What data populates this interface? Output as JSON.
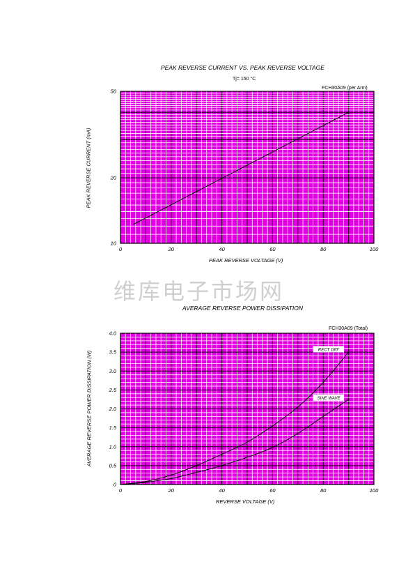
{
  "watermark": "维库电子市场网",
  "chart_data": [
    {
      "type": "line",
      "title": "PEAK REVERSE CURRENT VS. PEAK REVERSE VOLTAGE",
      "subtitle": "Tj= 150 °C",
      "note": "FCH30A09 (per Arm)",
      "xlabel": "PEAK REVERSE VOLTAGE (V)",
      "ylabel": "PEAK REVERSE CURRENT (mA)",
      "xlim": [
        0,
        100
      ],
      "ylim": [
        10,
        50
      ],
      "yscale": "log",
      "grid": true,
      "x_ticks": [
        "0",
        "20",
        "40",
        "60",
        "80",
        "100"
      ],
      "y_ticks": [
        "10",
        "20",
        "50"
      ],
      "series": [
        {
          "x": [
            5,
            90
          ],
          "y": [
            12.2,
            40
          ]
        }
      ]
    },
    {
      "type": "line",
      "title": "AVERAGE REVERSE POWER DISSIPATION",
      "note": "FCH30A09 (Total)",
      "xlabel": "REVERSE VOLTAGE (V)",
      "ylabel": "AVERAGE REVERSE POWER DISSIPATION (W)",
      "xlim": [
        0,
        100
      ],
      "ylim": [
        0,
        4.0
      ],
      "grid": true,
      "x_ticks": [
        "0",
        "20",
        "40",
        "60",
        "80",
        "100"
      ],
      "y_ticks": [
        "0",
        "0.5",
        "1.0",
        "1.5",
        "2.0",
        "2.5",
        "3.0",
        "3.5",
        "4.0"
      ],
      "series": [
        {
          "name": "RECT 180°",
          "x": [
            0,
            10,
            20,
            30,
            40,
            50,
            60,
            70,
            80,
            90
          ],
          "y": [
            0,
            0.08,
            0.25,
            0.5,
            0.8,
            1.12,
            1.55,
            2.05,
            2.7,
            3.5
          ]
        },
        {
          "name": "SINE WAVE",
          "x": [
            0,
            10,
            20,
            30,
            40,
            50,
            60,
            70,
            80,
            90
          ],
          "y": [
            0,
            0.06,
            0.16,
            0.32,
            0.5,
            0.72,
            0.98,
            1.35,
            1.8,
            2.25
          ]
        }
      ]
    }
  ]
}
